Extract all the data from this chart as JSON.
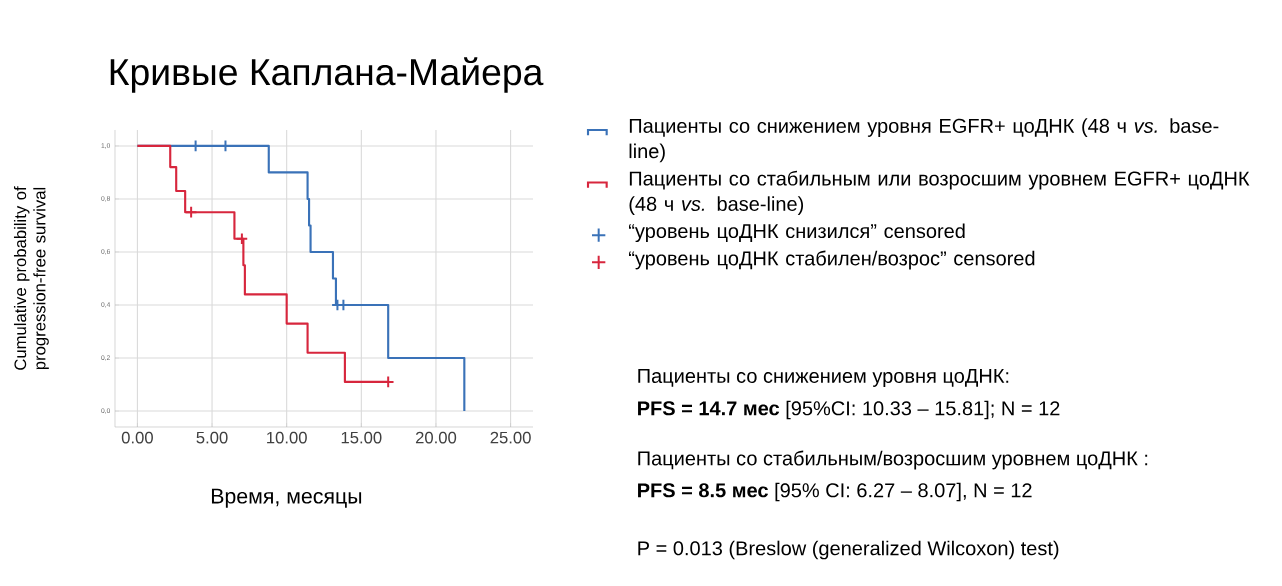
{
  "chart_data": {
    "type": "step",
    "title": "Кривые Каплана-Майера",
    "xlabel": "Время, месяцы",
    "ylabel": "Cumulative probability of progression-free survival",
    "xlim": [
      -1.5,
      26.5
    ],
    "ylim": [
      -0.06,
      1.06
    ],
    "xticks": [
      {
        "value": 0,
        "label": "0.00"
      },
      {
        "value": 5,
        "label": "5.00"
      },
      {
        "value": 10,
        "label": "10.00"
      },
      {
        "value": 15,
        "label": "15.00"
      },
      {
        "value": 20,
        "label": "20.00"
      },
      {
        "value": 25,
        "label": "25.00"
      }
    ],
    "yticks": [
      {
        "value": 0,
        "label": "0,0"
      },
      {
        "value": 0.2,
        "label": "0,2"
      },
      {
        "value": 0.4,
        "label": "0,4"
      },
      {
        "value": 0.6,
        "label": "0,6"
      },
      {
        "value": 0.8,
        "label": "0,8"
      },
      {
        "value": 1,
        "label": "1,0"
      }
    ],
    "grid": true,
    "legend": "right",
    "series": [
      {
        "name": "Пациенты со снижением уровня EGFR+ цоДНК (48 ч *vs.* base-line)",
        "color": "#3a72b8",
        "x": [
          0,
          8.8,
          11.4,
          11.5,
          11.6,
          13.1,
          13.3,
          16.8,
          21.9
        ],
        "values": [
          1,
          0.9,
          0.8,
          0.7,
          0.6,
          0.5,
          0.4,
          0.2,
          0
        ]
      },
      {
        "name": "Пациенты со стабильным или возросшим уровнем EGFR+ цоДНК (48 ч *vs.* base-line)",
        "color": "#d7263d",
        "x": [
          0,
          2.2,
          2.6,
          3.2,
          6.5,
          7.1,
          7.2,
          10.0,
          11.4,
          13.9,
          16.8
        ],
        "values": [
          1,
          0.92,
          0.83,
          0.75,
          0.65,
          0.55,
          0.44,
          0.33,
          0.22,
          0.11,
          0.11
        ]
      },
      {
        "name": "“уровень цоДНК снизился” censored",
        "type": "scatter",
        "marker": "cross",
        "color": "#3a72b8",
        "x": [
          3.9,
          5.9,
          13.4,
          13.8
        ],
        "values": [
          1,
          1,
          0.4,
          0.4
        ]
      },
      {
        "name": "“уровень цоДНК стабилен/возрос” censored",
        "type": "scatter",
        "marker": "cross",
        "color": "#d7263d",
        "x": [
          3.6,
          7.0,
          16.8
        ],
        "values": [
          0.75,
          0.65,
          0.11
        ]
      }
    ],
    "annotations": [
      "Пациенты со снижением уровня цоДНК:",
      "**PFS = 14.7 мес** [95%CI: 10.33 – 15.81]; N = 12",
      "Пациенты со стабильным/возросшим уровнем цоДНК :",
      "**PFS = 8.5 мес** [95% CI: 6.27 – 8.07], N = 12",
      "P = 0.013 (Breslow (generalized Wilcoxon) test)"
    ]
  }
}
